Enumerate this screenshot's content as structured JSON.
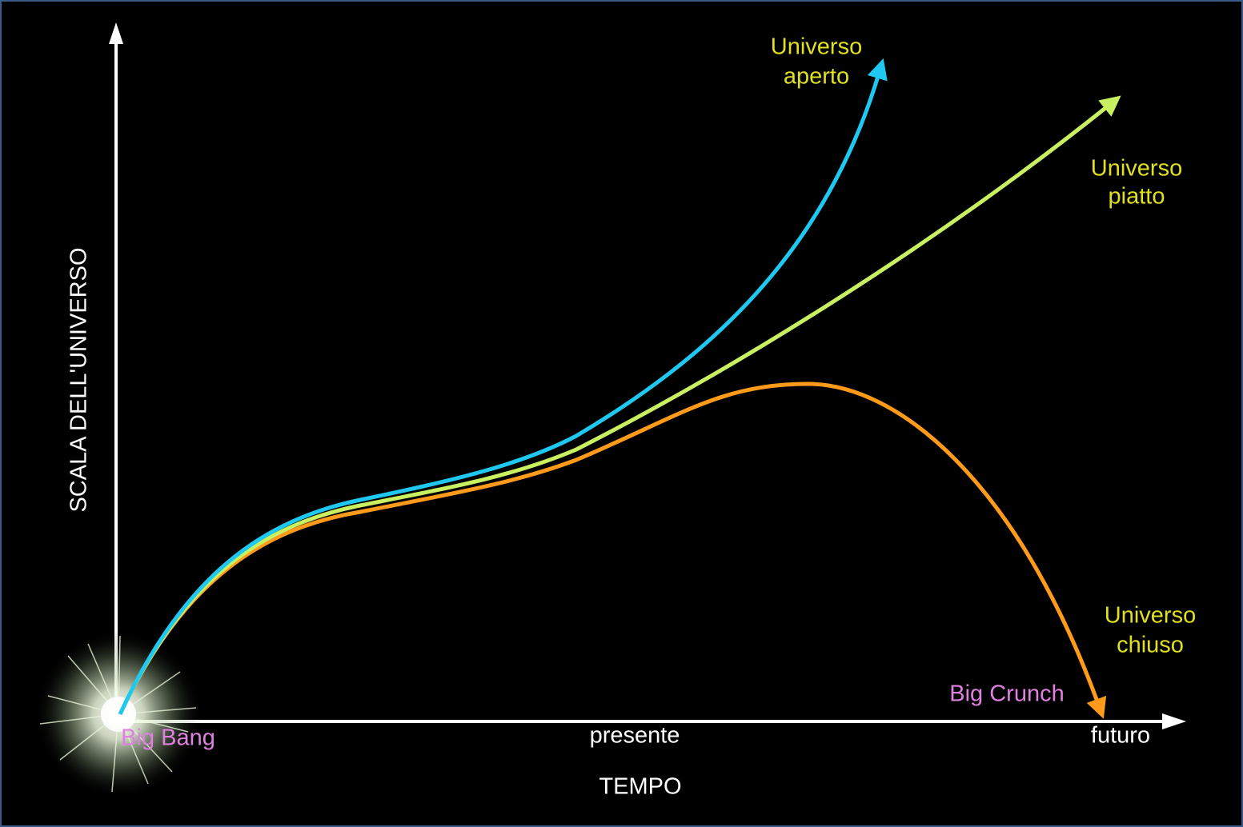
{
  "axes": {
    "y_label": "SCALA DELL'UNIVERSO",
    "x_label": "TEMPO"
  },
  "x_marks": {
    "start": "Big Bang",
    "middle": "presente",
    "end": "futuro"
  },
  "curves": {
    "open": {
      "label": [
        "Universo",
        "aperto"
      ]
    },
    "flat": {
      "label": [
        "Universo",
        "piatto"
      ]
    },
    "closed": {
      "label": [
        "Universo",
        "chiuso"
      ],
      "end_label": "Big Crunch"
    }
  }
}
